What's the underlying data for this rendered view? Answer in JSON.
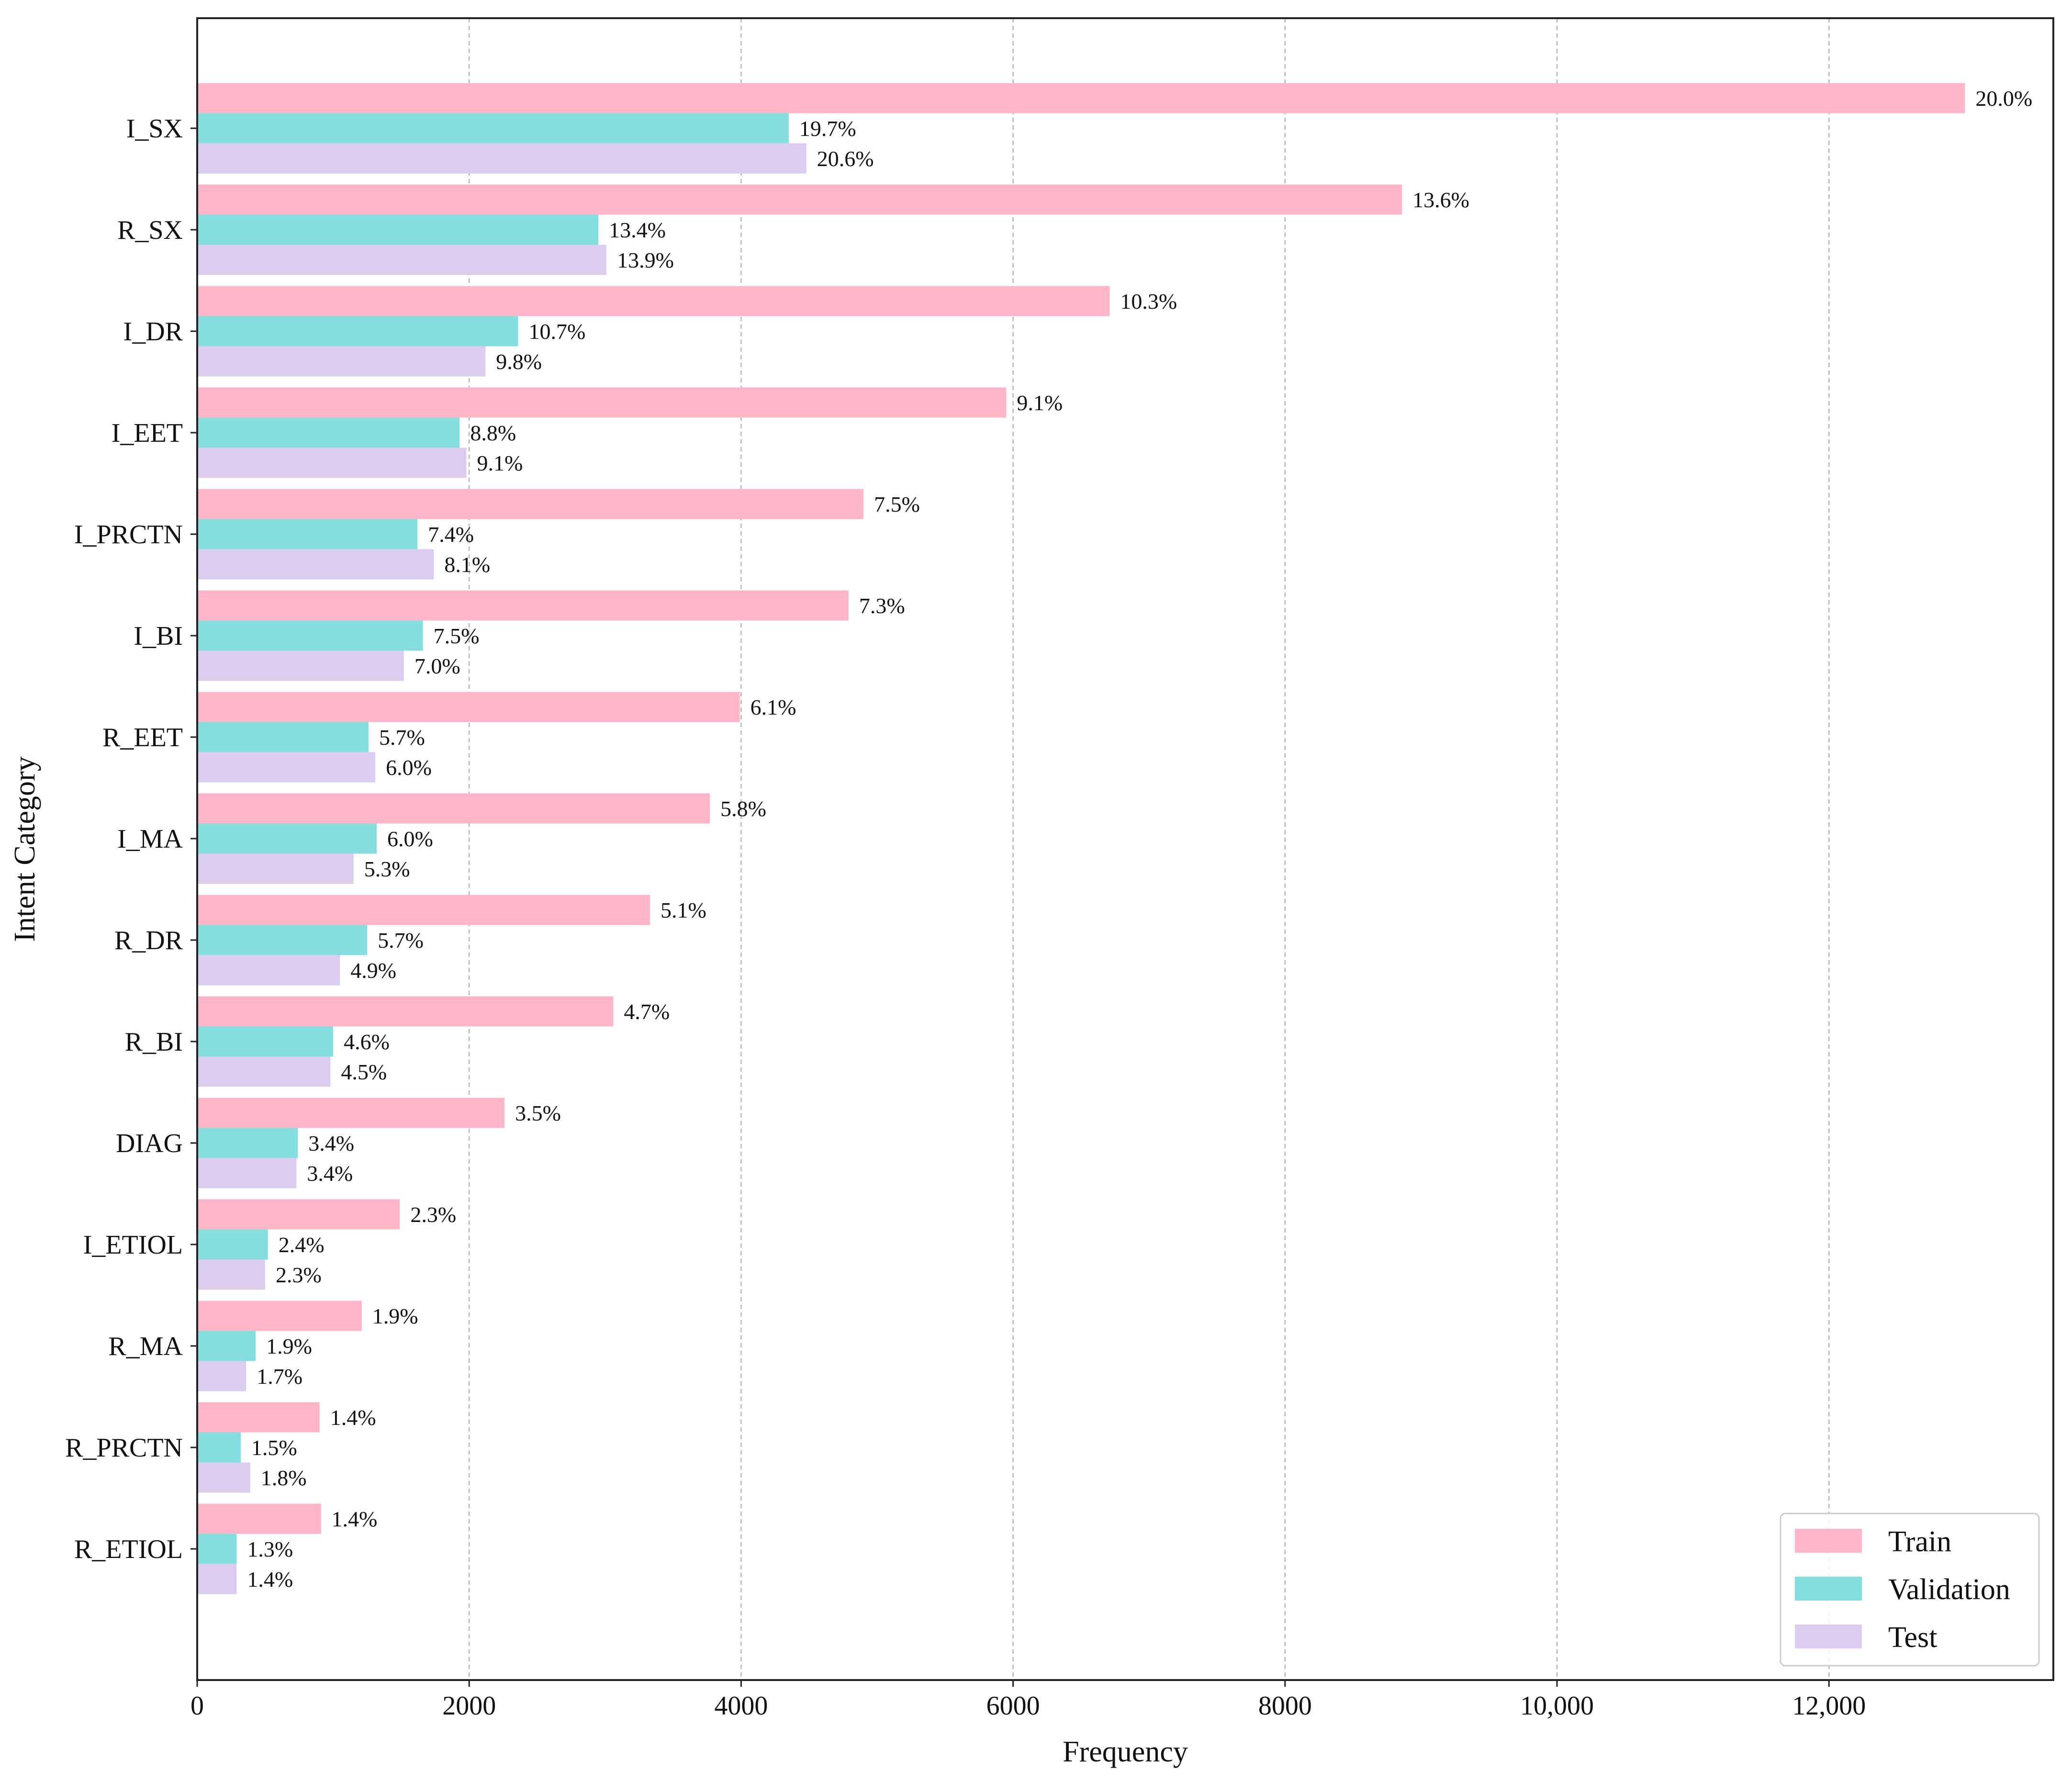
{
  "chart_data": {
    "type": "bar",
    "orientation": "horizontal",
    "title": "",
    "xlabel": "Frequency",
    "ylabel": "Intent Category",
    "xlim": [
      0,
      13650
    ],
    "xticks": [
      0,
      2000,
      4000,
      6000,
      8000,
      10000,
      12000
    ],
    "xtick_labels": [
      "0",
      "2000",
      "4000",
      "6000",
      "8000",
      "10,000",
      "12,000"
    ],
    "grid": "vertical dashed",
    "legend_position": "bottom-right",
    "categories": [
      "I_SX",
      "R_SX",
      "I_DR",
      "I_EET",
      "I_PRCTN",
      "I_BI",
      "R_EET",
      "I_MA",
      "R_DR",
      "R_BI",
      "DIAG",
      "I_ETIOL",
      "R_MA",
      "R_PRCTN",
      "R_ETIOL"
    ],
    "series": [
      {
        "name": "Train",
        "color": "#ffb6c8",
        "values": [
          13000,
          8860,
          6710,
          5950,
          4900,
          4790,
          3990,
          3770,
          3330,
          3060,
          2260,
          1490,
          1210,
          900,
          910
        ],
        "labels": [
          "20.0%",
          "13.6%",
          "10.3%",
          "9.1%",
          "7.5%",
          "7.3%",
          "6.1%",
          "5.8%",
          "5.1%",
          "4.7%",
          "3.5%",
          "2.3%",
          "1.9%",
          "1.4%",
          "1.4%"
        ]
      },
      {
        "name": "Validation",
        "color": "#86dde0",
        "values": [
          4350,
          2950,
          2360,
          1930,
          1620,
          1660,
          1260,
          1320,
          1250,
          1000,
          740,
          520,
          430,
          320,
          290
        ],
        "labels": [
          "19.7%",
          "13.4%",
          "10.7%",
          "8.8%",
          "7.4%",
          "7.5%",
          "5.7%",
          "6.0%",
          "5.7%",
          "4.6%",
          "3.4%",
          "2.4%",
          "1.9%",
          "1.5%",
          "1.3%"
        ]
      },
      {
        "name": "Test",
        "color": "#dccdf0",
        "values": [
          4480,
          3010,
          2120,
          1980,
          1740,
          1520,
          1310,
          1150,
          1050,
          980,
          730,
          500,
          360,
          390,
          290
        ],
        "labels": [
          "20.6%",
          "13.9%",
          "9.8%",
          "9.1%",
          "8.1%",
          "7.0%",
          "6.0%",
          "5.3%",
          "4.9%",
          "4.5%",
          "3.4%",
          "2.3%",
          "1.7%",
          "1.8%",
          "1.4%"
        ]
      }
    ]
  }
}
